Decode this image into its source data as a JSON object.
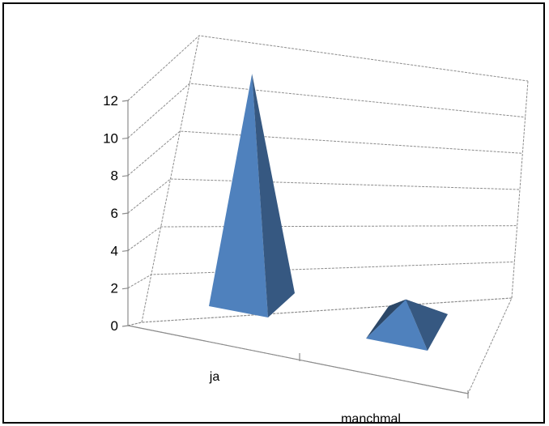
{
  "chart_data": {
    "type": "bar",
    "style": "3d-pyramid",
    "categories": [
      "ja",
      "manchmal"
    ],
    "series": [
      {
        "values": [
          12,
          1
        ],
        "color": "#4f81bd"
      }
    ],
    "ylim": [
      0,
      12
    ],
    "y_ticks": [
      "0",
      "2",
      "4",
      "6",
      "8",
      "10",
      "12"
    ],
    "grid": true,
    "legend": "none"
  }
}
